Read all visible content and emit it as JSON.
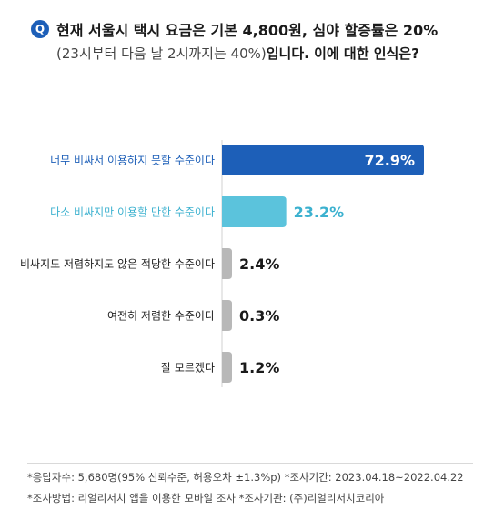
{
  "question": {
    "badge": "Q",
    "line1": "현재 서울시 택시 요금은 기본 4,800원, 심야 할증률은 20%",
    "line2_paren": "(23시부터 다음 날 2시까지는 40%)",
    "line2_rest": "입니다. 이에 대한 인식은?"
  },
  "chart_data": {
    "type": "bar",
    "orientation": "horizontal",
    "categories": [
      "너무 비싸서 이용하지 못할 수준이다",
      "다소 비싸지만 이용할 만한 수준이다",
      "비싸지도 저렴하지도 않은 적당한 수준이다",
      "여전히 저렴한 수준이다",
      "잘 모르겠다"
    ],
    "values": [
      72.9,
      23.2,
      2.4,
      0.3,
      1.2
    ],
    "value_labels": [
      "72.9%",
      "23.2%",
      "2.4%",
      "0.3%",
      "1.2%"
    ],
    "xlim": [
      0,
      72.9
    ],
    "colors": [
      "#1d5fb8",
      "#5bc3dc",
      "#b8b8b8",
      "#b8b8b8",
      "#b8b8b8"
    ],
    "label_colors": [
      "#1d5fb8",
      "#3cb1cf",
      "#222222",
      "#222222",
      "#222222"
    ],
    "grid": false,
    "legend": "none"
  },
  "footer": {
    "line1": "*응답자수: 5,680명(95% 신뢰수준, 허용오차 ±1.3%p) *조사기간: 2023.04.18~2022.04.22",
    "line2": "*조사방법: 리얼리서치 앱을 이용한 모바일 조사 *조사기관: (주)리얼리서치코리아"
  }
}
